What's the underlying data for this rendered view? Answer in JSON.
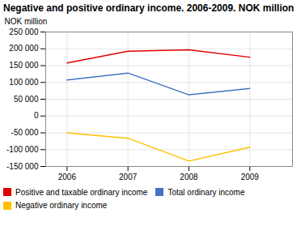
{
  "chart_data": {
    "type": "line",
    "title": "Negative and positive ordinary income. 2006-2009. NOK million",
    "ylabel": "NOK million",
    "x": [
      2006,
      2007,
      2008,
      2009
    ],
    "series": [
      {
        "name": "Positive and taxable ordinary income",
        "color": "#e00000",
        "values": [
          158000,
          193000,
          197000,
          175000
        ]
      },
      {
        "name": "Total ordinary income",
        "color": "#4472c4",
        "values": [
          107000,
          128000,
          63000,
          82000
        ]
      },
      {
        "name": "Negative ordinary income",
        "color": "#ffc000",
        "values": [
          -50000,
          -66000,
          -134000,
          -93000
        ]
      }
    ],
    "xlim": [
      2005.65,
      2009.7
    ],
    "xticks": [
      2006,
      2007,
      2008,
      2009
    ],
    "ylim": [
      -150000,
      250000
    ],
    "yticks": [
      {
        "value": -150000,
        "label": "-150 000"
      },
      {
        "value": -100000,
        "label": "-100 000"
      },
      {
        "value": -50000,
        "label": "-50 000"
      },
      0,
      {
        "value": 50000,
        "label": "50 000"
      },
      {
        "value": 100000,
        "label": "100 000"
      },
      {
        "value": 150000,
        "label": "150 000"
      },
      {
        "value": 200000,
        "label": "200 000"
      },
      {
        "value": 250000,
        "label": "250 000"
      }
    ],
    "grid": true,
    "legend": "bottom"
  }
}
